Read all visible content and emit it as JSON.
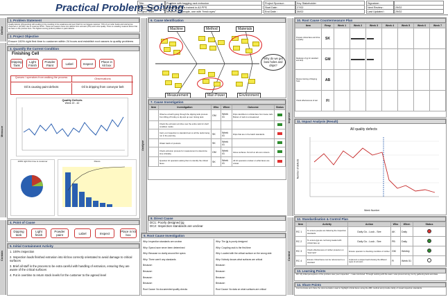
{
  "title": "Practical Problem Solving",
  "header": {
    "title_label": "Title:",
    "title_value": "Problem with bagging rack extrusion",
    "lead_label": "Project Lead :",
    "lead_value": "Someone that is trained in A3 PPS",
    "team_label": "Project Team :",
    "team_value": "Between 5-7 people, one with \"fresh eyes\"",
    "sponsor_label": "Project Sponsor :",
    "sponsor_value": "Key Stakeholder",
    "start_label": "Start Date :",
    "start_value": "27/02",
    "end_label": "End Date :",
    "end_value": "30/02",
    "sig_label": "Signature :",
    "sig_value": "",
    "review_label": "Next Review :",
    "review_value": "29/02",
    "updated_label": "Last Updated :",
    "updated_value": "29/02"
  },
  "sidebars": {
    "define": "Define",
    "measure": "Measure",
    "analyse": "Analyse",
    "improve": "Improve",
    "control": "Control",
    "contain": "Contain"
  },
  "s1": {
    "title": "1. Problem Statement",
    "text": "Quality defects (1%rejecting) still resulting in line resulting in line weakness and poor finish for our biggest customer; 70% of our order books and scoring low customers 1 (12,000). due to customer RTAC. These two reasons focus into defects from extrusion (3%) and in-line quality. There is a leading measure above that we have on the process here. The highest scoring product problem is paint defects."
  },
  "s2": {
    "title": "2. Project Objective",
    "text": "Ensure 100% right first time to customer within 24 hours and establish root causes to quality problems within 3 days."
  },
  "s3": {
    "title": "3. Quantify the Current Condition",
    "cell": "Finishing Cell",
    "steps": [
      "Dipping Tank",
      "Light Finish",
      "Powder Paint",
      "Label",
      "Inspect",
      "Place in kit box"
    ],
    "col1_head": "Queues / operators from walking the process",
    "col2_head": "Observations",
    "obs1": "Oil is causing paint defects",
    "obs2": "Oil is dripping from conveyor belt"
  },
  "defect_chart": {
    "title": "Quality Defects",
    "subtitle": "Week 19 - 42"
  },
  "pie_label": "100% right first time to customer",
  "pareto_label": "Pareto",
  "s4": {
    "title": "4. Point of Cause",
    "steps": [
      "Dipping tank",
      "Light finish",
      "Powder paint",
      "Label",
      "Inspect",
      "Place in kit box"
    ]
  },
  "s5": {
    "title": "5. Initial Containment Activity",
    "items": [
      "1. 100% inspection",
      "2. Inspection loads finished extrusion into kit box correctly orientated to avoid damage to critical surfaces",
      "3. Brief all staff in the process to be extra careful with handling of extrusion, ensuring they are aware of the critical surfaces",
      "4. Put in overtime to return stock levels for the customer to the agreed level"
    ]
  },
  "s6": {
    "title": "6. Cause Identification",
    "bones": [
      "Machine",
      "Method",
      "Materials",
      "Measurement",
      "Man Power",
      "Environment"
    ],
    "head": "Why do we get bow holes and drips?"
  },
  "s7": {
    "title": "7. Cause Investigation",
    "cols": [
      "Item",
      "Investigation",
      "Who",
      "When",
      "Outcome",
      "Status"
    ],
    "rows": [
      {
        "inv": "Observe a batch going through the dipping tank process from lifting off trolley to dip and up over rinsing tank.",
        "who": "GM",
        "when": "Week 41",
        "out": "Drips identified on critical face from loose rack. Bottom of rack is unmeasured.",
        "status": "#2e8b2e"
      },
      {
        "inv": "Check the extrusion at inline over the entire rack for shelf condition marks.",
        "who": "",
        "when": "",
        "out": "",
        "status": "#2e8b2e"
      },
      {
        "inv": "Carry out inspection to standard test on all the racks being run in the past day.",
        "who": "SK",
        "when": "Week 41",
        "out": "Drips that are in the batch standards.",
        "status": "#e03131"
      },
      {
        "inv": "Obtain batch of products",
        "who": "SK",
        "when": "Week 41",
        "out": "",
        "status": "#2e8b2e"
      },
      {
        "inv": "Check extrusion process for measurement to determine time criticality.",
        "who": "GM",
        "when": "Week 41",
        "out": "Glove surfaces. No left on all oven colours.",
        "status": "#2e8b2e"
      },
      {
        "inv": "Question 10 operators asking them to identify the critical faces.",
        "who": "SK",
        "when": "Week 41",
        "out": "All 10 operators unclear on what faces are critical.",
        "status": "#e03131"
      }
    ]
  },
  "s8": {
    "title": "8. Direct Cause",
    "l1": "DC1: Poorly designed jig",
    "l2": "DC2: Inspection standards are unclear"
  },
  "s9": {
    "title": "9. Root Cause Investigation",
    "l": [
      "Why: Inspection standards are unclear",
      "Why: Specs have never been determined",
      "Why: Because no clarity around the specs",
      "Why: There aren't any standards",
      "Because:",
      "Because:",
      "Because:",
      "Because:",
      "Root Cause: No documented quality checks"
    ],
    "r": [
      "Why: The jig is poorly designed",
      "Why: Coupling rack is the first time",
      "Why: Loaded with the critical surface on the wrong side",
      "Why: Nobody knows what surfaces are critical",
      "Because:",
      "Because:",
      "Because:",
      "Because:",
      "Root Cause: No data on what surfaces are critical"
    ]
  },
  "s10": {
    "title": "10. Root Cause Countermeasure Plan",
    "cols": [
      "Item",
      "Resp",
      "Week 1",
      "Week 2",
      "Week 3",
      "Week 4",
      "Week 5",
      "Week 6",
      "Week 7"
    ],
    "rows": [
      {
        "item": "Prepare critical face and drive of quality",
        "resp": "SK"
      },
      {
        "item": "Redesign of jig for standard and drop",
        "resp": "GM"
      },
      {
        "item": "Review training of Dipping Tank",
        "resp": "AB"
      },
      {
        "item": "Check effectiveness of test",
        "resp": "FI"
      }
    ]
  },
  "s11": {
    "title": "11. Impact Analysis (Result)"
  },
  "impact_chart": {
    "title": "All quality defects",
    "xlabel": "Week Number",
    "ylabel": "Number of defects"
  },
  "s12": {
    "title": "12. Standardisation & Control Plan",
    "cols": [
      "Item",
      "Activity",
      "Action",
      "Who",
      "When",
      "Status"
    ],
    "rows": [
      {
        "item": "RC 1",
        "act": "To ensure people are following the inspection standards",
        "action": "Daily Go - Look - See",
        "who": "AK",
        "when": "Daily",
        "status": "#e03131"
      },
      {
        "item": "RC 2",
        "act": "To ensure jigs are not being loaded with critical face up",
        "action": "Daily Go - Look - See",
        "who": "PB",
        "when": "Daily",
        "status": "#2e8b2e"
      },
      {
        "item": "RC 3",
        "act": "Check effectiveness of rubber protector on \"load rack\"",
        "action": "Ensure operator is checking condition of rubber",
        "who": "GM",
        "when": "Weekly",
        "status": "#2e8b2e"
      },
      {
        "item": "RC 4",
        "act": "Ensure critical faces can be referenced to a standard",
        "action": "Implement a unique board showing the different types of extrusion",
        "who": "FI",
        "when": "Week 51",
        "status": "#fff"
      }
    ]
  },
  "s13": {
    "title": "13. Learning Points",
    "text": "DK: My initial perceptions of the problem was 'poor inspection' - I was convinced. Through working with the team I was proved wrong, but by gathering facts and data."
  },
  "s14": {
    "title": "14. Share Points",
    "text": "Communicate and share the documentation used to highlight critical faces using the ABC method and provide clarity of visual inspection standards."
  },
  "colors": {
    "accent": "#1f3b6f",
    "sticky": "#f4e94b",
    "pill_border": "#cc3333",
    "green": "#2e8b2e",
    "red": "#e03131"
  }
}
